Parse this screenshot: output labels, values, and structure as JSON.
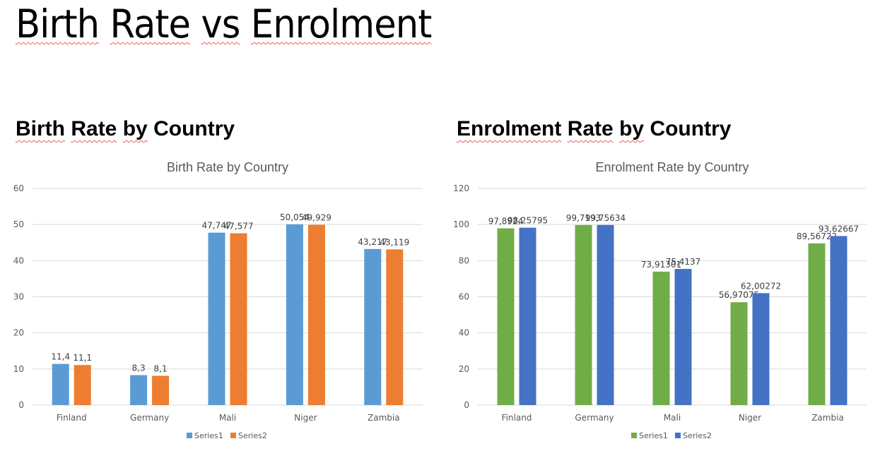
{
  "document": {
    "title_words": [
      "Birth",
      "Rate",
      "vs",
      "Enrolment"
    ],
    "sections": [
      {
        "heading_words": [
          "Birth",
          "Rate",
          "by",
          "Country"
        ]
      },
      {
        "heading_words": [
          "Enrolment",
          "Rate",
          "by",
          "Country"
        ]
      }
    ]
  },
  "chart_data": [
    {
      "type": "bar",
      "title": "Birth Rate by Country",
      "xlabel": "",
      "ylabel": "",
      "categories": [
        "Finland",
        "Germany",
        "Mali",
        "Niger",
        "Zambia"
      ],
      "ylim": [
        0,
        60
      ],
      "yticks": [
        0,
        10,
        20,
        30,
        40,
        50,
        60
      ],
      "grid": true,
      "legend": "bottom",
      "series": [
        {
          "name": "Series1",
          "color": "#5b9bd5",
          "values": [
            11.4,
            8.3,
            47.747,
            50.054,
            43.217
          ],
          "labels": [
            "11,4",
            "8,3",
            "47,747",
            "50,054",
            "43,217"
          ]
        },
        {
          "name": "Series2",
          "color": "#ed7d31",
          "values": [
            11.1,
            8.1,
            47.577,
            49.929,
            43.119
          ],
          "labels": [
            "11,1",
            "8,1",
            "47,577",
            "49,929",
            "43,119"
          ]
        }
      ]
    },
    {
      "type": "bar",
      "title": "Enrolment Rate by Country",
      "xlabel": "",
      "ylabel": "",
      "categories": [
        "Finland",
        "Germany",
        "Mali",
        "Niger",
        "Zambia"
      ],
      "ylim": [
        0,
        120
      ],
      "yticks": [
        0,
        20,
        40,
        60,
        80,
        100,
        120
      ],
      "grid": true,
      "legend": "bottom",
      "series": [
        {
          "name": "Series1",
          "color": "#70ad47",
          "values": [
            97.8924,
            99.7193,
            73.91301,
            56.97075,
            89.56722
          ],
          "labels": [
            "97,8924",
            "99,7193",
            "73,91301",
            "56,97075",
            "89,56722"
          ]
        },
        {
          "name": "Series2",
          "color": "#4472c4",
          "values": [
            98.25795,
            99.75634,
            75.4137,
            62.00272,
            93.62667
          ],
          "labels": [
            "98,25795",
            "99,75634",
            "75,4137",
            "62,00272",
            "93,62667"
          ]
        }
      ]
    }
  ]
}
